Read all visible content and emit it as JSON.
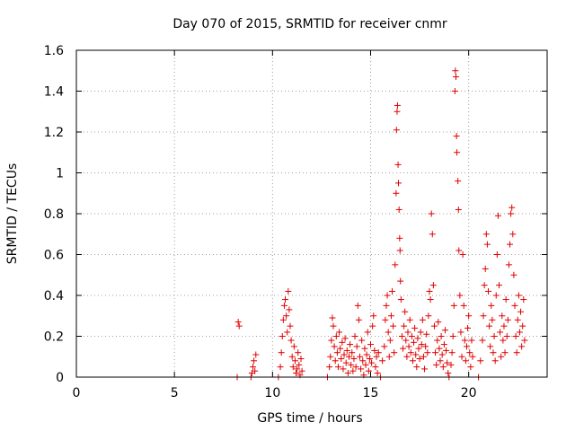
{
  "chart_data": {
    "type": "scatter",
    "title": "Day 070 of 2015, SRMTID for receiver cnmr",
    "xlabel": "GPS time / hours",
    "ylabel": "SRMTID / TECUs",
    "xlim": [
      0,
      24
    ],
    "ylim": [
      0,
      1.6
    ],
    "xticks": [
      0,
      5,
      10,
      15,
      20
    ],
    "yticks": [
      0,
      0.2,
      0.4,
      0.6,
      0.8,
      1,
      1.2,
      1.4,
      1.6
    ],
    "xtick_labels": [
      "0",
      "5",
      "10",
      "15",
      "20"
    ],
    "ytick_labels": [
      "0",
      "0.2",
      "0.4",
      "0.6",
      "0.8",
      "1",
      "1.2",
      "1.4",
      "1.6"
    ],
    "grid": true,
    "marker": "+",
    "color": "#e00000",
    "series": [
      {
        "name": "SRMTID",
        "points": [
          [
            8.2,
            0.0
          ],
          [
            8.25,
            0.27
          ],
          [
            8.3,
            0.25
          ],
          [
            8.9,
            0.0
          ],
          [
            8.95,
            0.02
          ],
          [
            9.0,
            0.05
          ],
          [
            9.05,
            0.08
          ],
          [
            9.1,
            0.03
          ],
          [
            9.15,
            0.11
          ],
          [
            10.3,
            0.0
          ],
          [
            10.4,
            0.05
          ],
          [
            10.45,
            0.12
          ],
          [
            10.5,
            0.2
          ],
          [
            10.55,
            0.28
          ],
          [
            10.6,
            0.35
          ],
          [
            10.65,
            0.38
          ],
          [
            10.7,
            0.3
          ],
          [
            10.75,
            0.22
          ],
          [
            10.8,
            0.42
          ],
          [
            10.85,
            0.33
          ],
          [
            10.9,
            0.25
          ],
          [
            10.95,
            0.18
          ],
          [
            11.0,
            0.1
          ],
          [
            11.05,
            0.05
          ],
          [
            11.1,
            0.15
          ],
          [
            11.15,
            0.08
          ],
          [
            11.2,
            0.02
          ],
          [
            11.25,
            0.04
          ],
          [
            11.3,
            0.12
          ],
          [
            11.35,
            0.06
          ],
          [
            11.4,
            0.01
          ],
          [
            11.45,
            0.09
          ],
          [
            11.5,
            0.03
          ],
          [
            12.8,
            0.0
          ],
          [
            12.9,
            0.05
          ],
          [
            12.95,
            0.1
          ],
          [
            13.0,
            0.18
          ],
          [
            13.05,
            0.29
          ],
          [
            13.1,
            0.25
          ],
          [
            13.15,
            0.15
          ],
          [
            13.2,
            0.08
          ],
          [
            13.25,
            0.2
          ],
          [
            13.3,
            0.12
          ],
          [
            13.35,
            0.05
          ],
          [
            13.4,
            0.22
          ],
          [
            13.45,
            0.14
          ],
          [
            13.5,
            0.09
          ],
          [
            13.55,
            0.17
          ],
          [
            13.6,
            0.04
          ],
          [
            13.65,
            0.11
          ],
          [
            13.7,
            0.19
          ],
          [
            13.75,
            0.07
          ],
          [
            13.8,
            0.13
          ],
          [
            13.85,
            0.02
          ],
          [
            13.9,
            0.1
          ],
          [
            13.95,
            0.16
          ],
          [
            14.0,
            0.06
          ],
          [
            14.05,
            0.12
          ],
          [
            14.1,
            0.03
          ],
          [
            14.15,
            0.09
          ],
          [
            14.2,
            0.2
          ],
          [
            14.25,
            0.05
          ],
          [
            14.3,
            0.15
          ],
          [
            14.35,
            0.35
          ],
          [
            14.4,
            0.28
          ],
          [
            14.45,
            0.1
          ],
          [
            14.5,
            0.04
          ],
          [
            14.55,
            0.18
          ],
          [
            14.6,
            0.08
          ],
          [
            14.65,
            0.01
          ],
          [
            14.7,
            0.14
          ],
          [
            14.75,
            0.06
          ],
          [
            14.8,
            0.11
          ],
          [
            14.85,
            0.22
          ],
          [
            14.9,
            0.03
          ],
          [
            14.95,
            0.09
          ],
          [
            15.0,
            0.16
          ],
          [
            15.05,
            0.07
          ],
          [
            15.1,
            0.25
          ],
          [
            15.15,
            0.3
          ],
          [
            15.2,
            0.13
          ],
          [
            15.25,
            0.05
          ],
          [
            15.3,
            0.1
          ],
          [
            15.35,
            0.02
          ],
          [
            15.4,
            0.12
          ],
          [
            15.5,
            0.0
          ],
          [
            15.6,
            0.08
          ],
          [
            15.7,
            0.15
          ],
          [
            15.75,
            0.28
          ],
          [
            15.8,
            0.35
          ],
          [
            15.85,
            0.4
          ],
          [
            15.9,
            0.22
          ],
          [
            15.95,
            0.1
          ],
          [
            16.0,
            0.18
          ],
          [
            16.05,
            0.3
          ],
          [
            16.1,
            0.42
          ],
          [
            16.15,
            0.25
          ],
          [
            16.2,
            0.12
          ],
          [
            16.25,
            0.55
          ],
          [
            16.3,
            0.9
          ],
          [
            16.32,
            1.21
          ],
          [
            16.35,
            1.3
          ],
          [
            16.37,
            1.33
          ],
          [
            16.4,
            1.04
          ],
          [
            16.42,
            0.95
          ],
          [
            16.45,
            0.82
          ],
          [
            16.48,
            0.68
          ],
          [
            16.5,
            0.62
          ],
          [
            16.52,
            0.47
          ],
          [
            16.55,
            0.38
          ],
          [
            16.6,
            0.2
          ],
          [
            16.65,
            0.14
          ],
          [
            16.7,
            0.25
          ],
          [
            16.75,
            0.32
          ],
          [
            16.8,
            0.18
          ],
          [
            16.85,
            0.1
          ],
          [
            16.9,
            0.22
          ],
          [
            16.95,
            0.15
          ],
          [
            17.0,
            0.28
          ],
          [
            17.05,
            0.12
          ],
          [
            17.1,
            0.2
          ],
          [
            17.15,
            0.08
          ],
          [
            17.2,
            0.17
          ],
          [
            17.25,
            0.24
          ],
          [
            17.3,
            0.11
          ],
          [
            17.35,
            0.05
          ],
          [
            17.4,
            0.19
          ],
          [
            17.45,
            0.14
          ],
          [
            17.5,
            0.09
          ],
          [
            17.55,
            0.22
          ],
          [
            17.6,
            0.16
          ],
          [
            17.65,
            0.28
          ],
          [
            17.7,
            0.1
          ],
          [
            17.75,
            0.04
          ],
          [
            17.8,
            0.15
          ],
          [
            17.85,
            0.21
          ],
          [
            17.9,
            0.12
          ],
          [
            17.95,
            0.3
          ],
          [
            18.0,
            0.42
          ],
          [
            18.05,
            0.38
          ],
          [
            18.1,
            0.8
          ],
          [
            18.15,
            0.7
          ],
          [
            18.2,
            0.45
          ],
          [
            18.25,
            0.25
          ],
          [
            18.3,
            0.12
          ],
          [
            18.35,
            0.06
          ],
          [
            18.4,
            0.18
          ],
          [
            18.45,
            0.27
          ],
          [
            18.5,
            0.14
          ],
          [
            18.55,
            0.08
          ],
          [
            18.6,
            0.2
          ],
          [
            18.65,
            0.11
          ],
          [
            18.7,
            0.05
          ],
          [
            18.75,
            0.16
          ],
          [
            18.8,
            0.23
          ],
          [
            18.85,
            0.13
          ],
          [
            18.9,
            0.07
          ],
          [
            18.95,
            0.02
          ],
          [
            19.0,
            0.0
          ],
          [
            19.1,
            0.06
          ],
          [
            19.15,
            0.12
          ],
          [
            19.2,
            0.2
          ],
          [
            19.25,
            0.35
          ],
          [
            19.3,
            1.4
          ],
          [
            19.32,
            1.5
          ],
          [
            19.35,
            1.47
          ],
          [
            19.38,
            1.18
          ],
          [
            19.4,
            1.1
          ],
          [
            19.45,
            0.96
          ],
          [
            19.48,
            0.82
          ],
          [
            19.5,
            0.62
          ],
          [
            19.55,
            0.4
          ],
          [
            19.6,
            0.22
          ],
          [
            19.65,
            0.1
          ],
          [
            19.7,
            0.6
          ],
          [
            19.75,
            0.35
          ],
          [
            19.8,
            0.18
          ],
          [
            19.85,
            0.08
          ],
          [
            19.9,
            0.15
          ],
          [
            19.95,
            0.24
          ],
          [
            20.0,
            0.3
          ],
          [
            20.05,
            0.12
          ],
          [
            20.1,
            0.05
          ],
          [
            20.15,
            0.18
          ],
          [
            20.2,
            0.1
          ],
          [
            20.5,
            0.0
          ],
          [
            20.6,
            0.08
          ],
          [
            20.7,
            0.18
          ],
          [
            20.75,
            0.3
          ],
          [
            20.8,
            0.45
          ],
          [
            20.85,
            0.53
          ],
          [
            20.9,
            0.7
          ],
          [
            20.95,
            0.65
          ],
          [
            21.0,
            0.42
          ],
          [
            21.05,
            0.25
          ],
          [
            21.1,
            0.15
          ],
          [
            21.15,
            0.35
          ],
          [
            21.2,
            0.28
          ],
          [
            21.25,
            0.12
          ],
          [
            21.3,
            0.2
          ],
          [
            21.35,
            0.08
          ],
          [
            21.4,
            0.4
          ],
          [
            21.45,
            0.6
          ],
          [
            21.5,
            0.79
          ],
          [
            21.55,
            0.45
          ],
          [
            21.6,
            0.22
          ],
          [
            21.65,
            0.1
          ],
          [
            21.7,
            0.3
          ],
          [
            21.75,
            0.18
          ],
          [
            21.8,
            0.25
          ],
          [
            21.85,
            0.12
          ],
          [
            21.9,
            0.38
          ],
          [
            21.95,
            0.2
          ],
          [
            22.0,
            0.28
          ],
          [
            22.05,
            0.55
          ],
          [
            22.1,
            0.65
          ],
          [
            22.15,
            0.8
          ],
          [
            22.2,
            0.83
          ],
          [
            22.25,
            0.7
          ],
          [
            22.3,
            0.5
          ],
          [
            22.35,
            0.35
          ],
          [
            22.4,
            0.2
          ],
          [
            22.45,
            0.12
          ],
          [
            22.5,
            0.28
          ],
          [
            22.55,
            0.4
          ],
          [
            22.6,
            0.22
          ],
          [
            22.65,
            0.32
          ],
          [
            22.7,
            0.15
          ],
          [
            22.75,
            0.25
          ],
          [
            22.8,
            0.38
          ],
          [
            22.85,
            0.18
          ]
        ]
      }
    ]
  }
}
